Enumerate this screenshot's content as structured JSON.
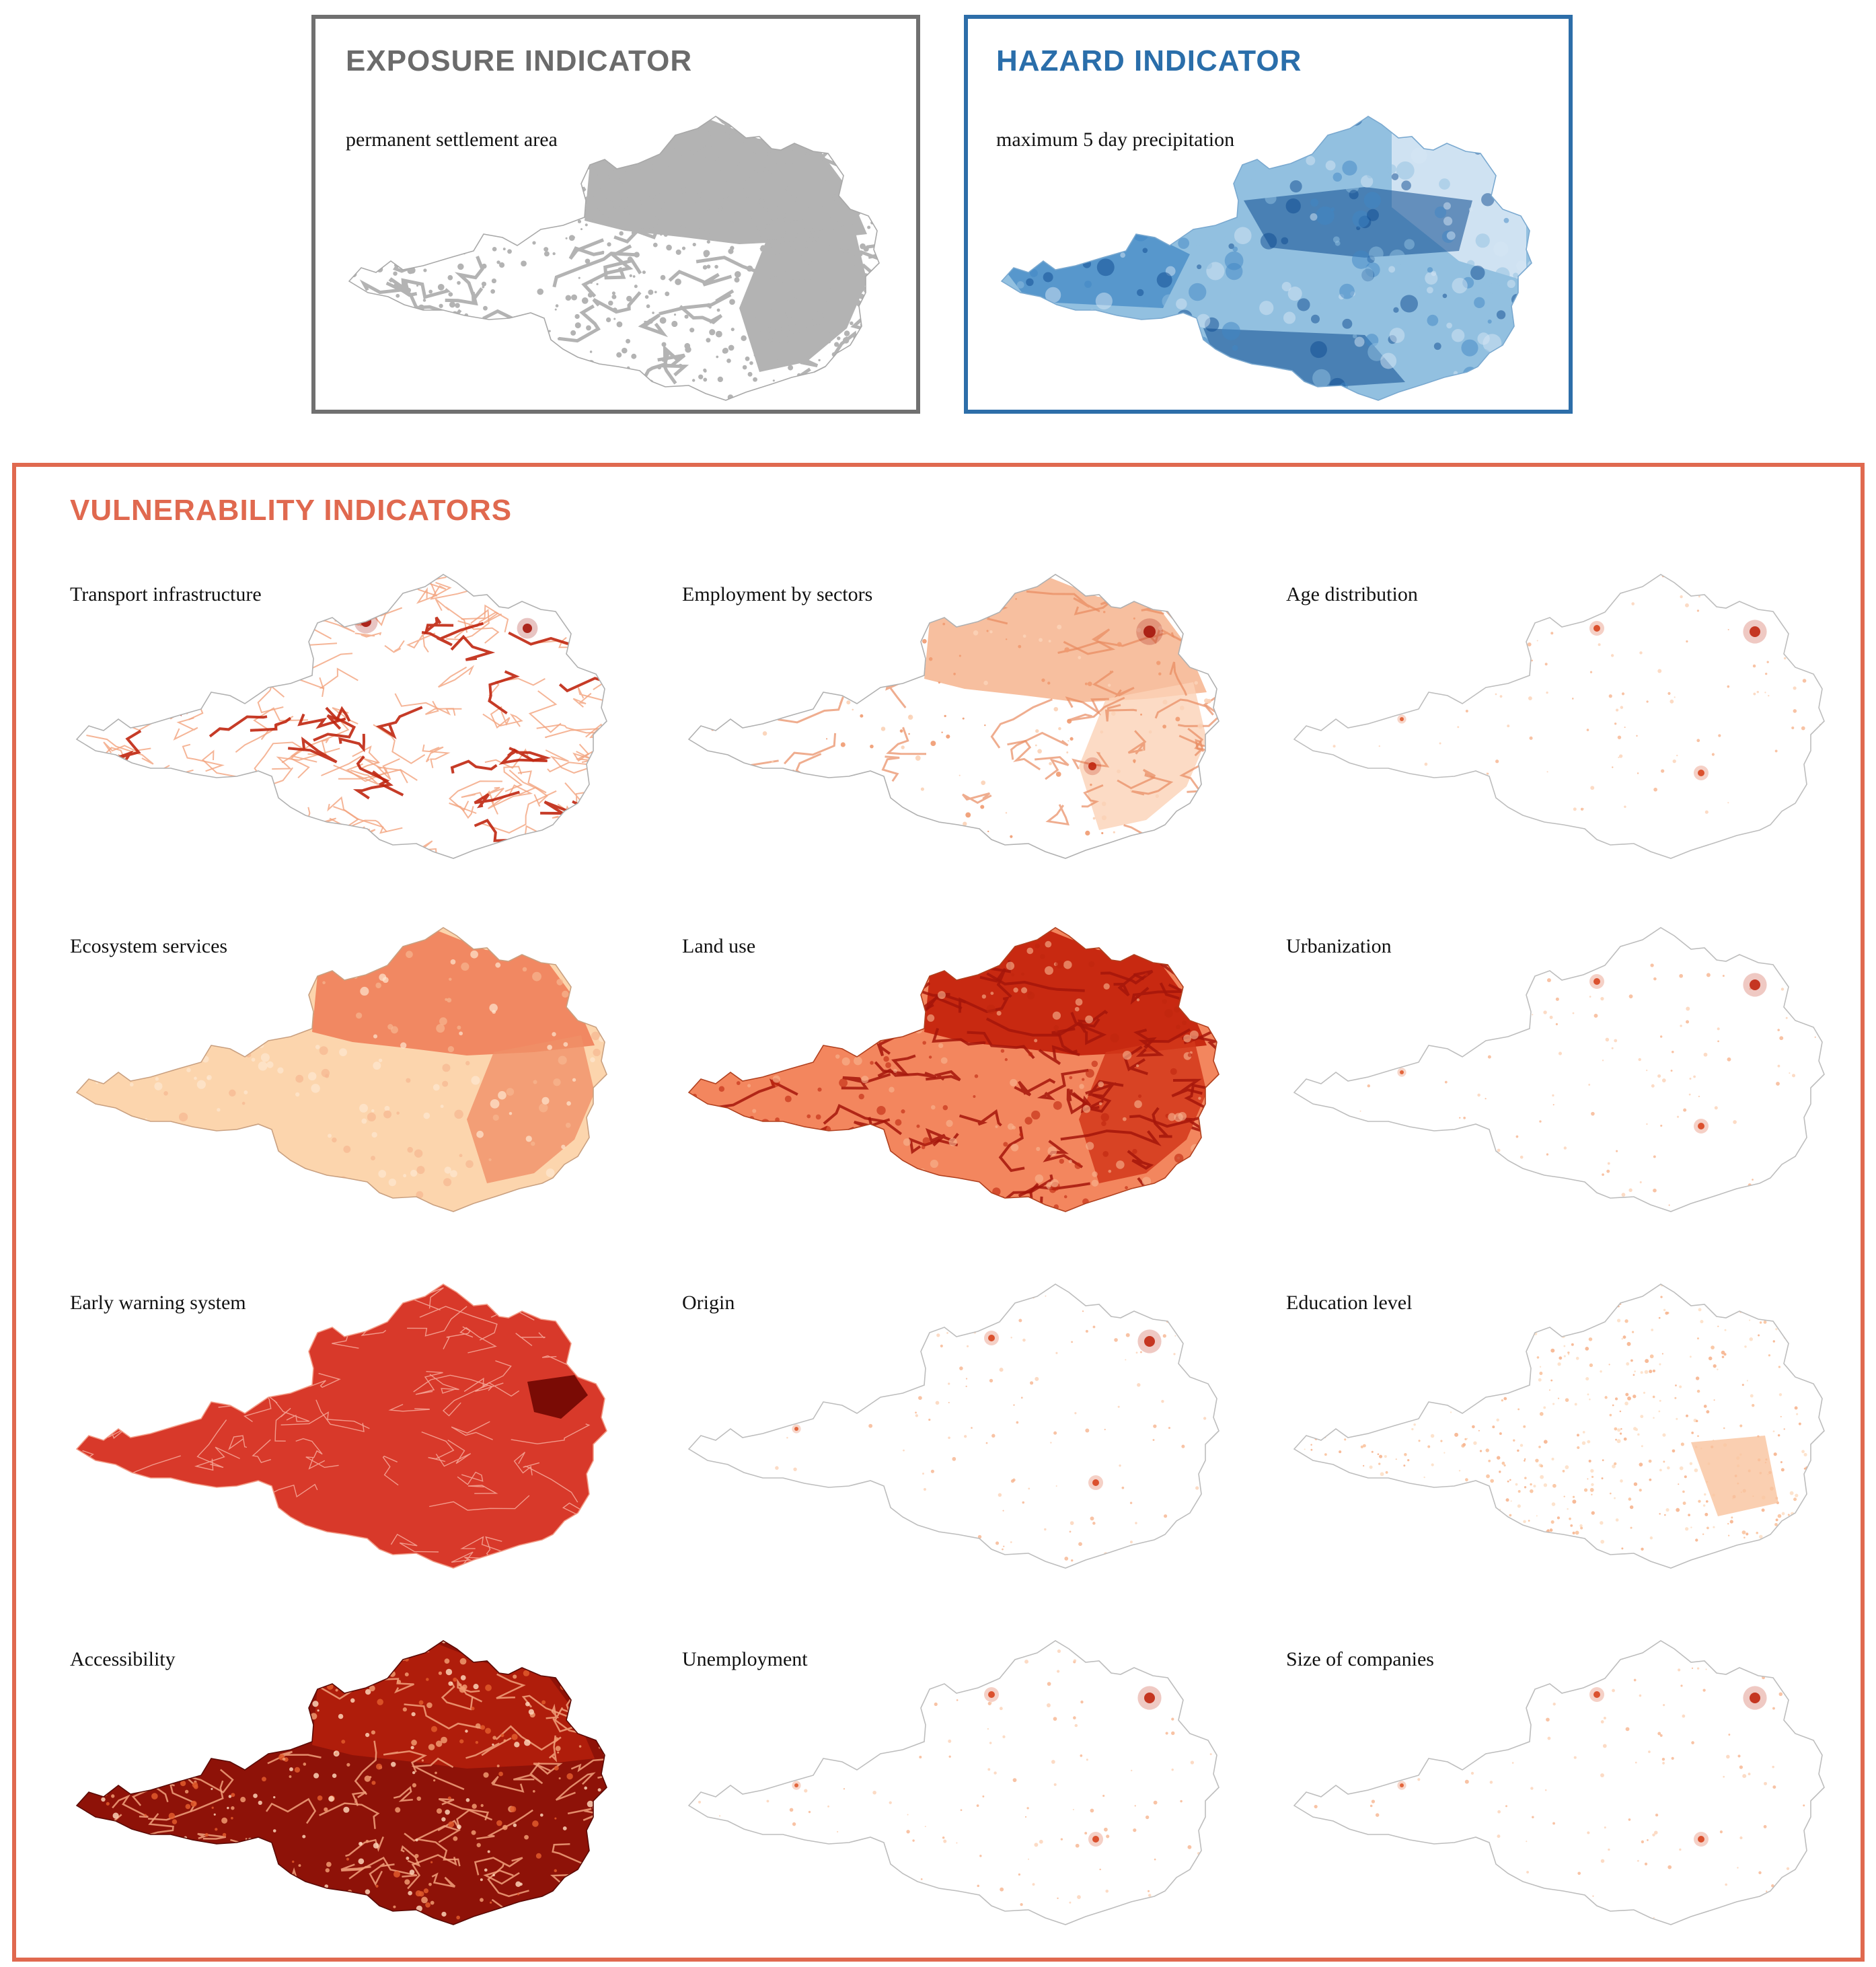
{
  "exposure": {
    "title": "EXPOSURE INDICATOR",
    "subtitle": "permanent settlement area",
    "title_color": "#6b6b6b",
    "map_color": "#b3b3b3"
  },
  "hazard": {
    "title": "HAZARD INDICATOR",
    "subtitle": "maximum 5 day precipitation",
    "title_color": "#2a6eaa",
    "map_colors": [
      "#d6e6f4",
      "#92c0e0",
      "#3f86c3",
      "#0d4a8f"
    ]
  },
  "vulnerability": {
    "title": "VULNERABILITY INDICATORS",
    "title_color": "#e0694f",
    "maps": [
      {
        "label": "Transport infrastructure",
        "style": "network"
      },
      {
        "label": "Employment by sectors",
        "style": "sectors"
      },
      {
        "label": "Age distribution",
        "style": "sparse"
      },
      {
        "label": "Ecosystem services",
        "style": "ecosystem"
      },
      {
        "label": "Land use",
        "style": "landuse"
      },
      {
        "label": "Urbanization",
        "style": "sparse"
      },
      {
        "label": "Early warning system",
        "style": "warning"
      },
      {
        "label": "Origin",
        "style": "sparse"
      },
      {
        "label": "Education level",
        "style": "education"
      },
      {
        "label": "Accessibility",
        "style": "accessibility"
      },
      {
        "label": "Unemployment",
        "style": "sparse"
      },
      {
        "label": "Size of companies",
        "style": "sparse"
      }
    ]
  }
}
